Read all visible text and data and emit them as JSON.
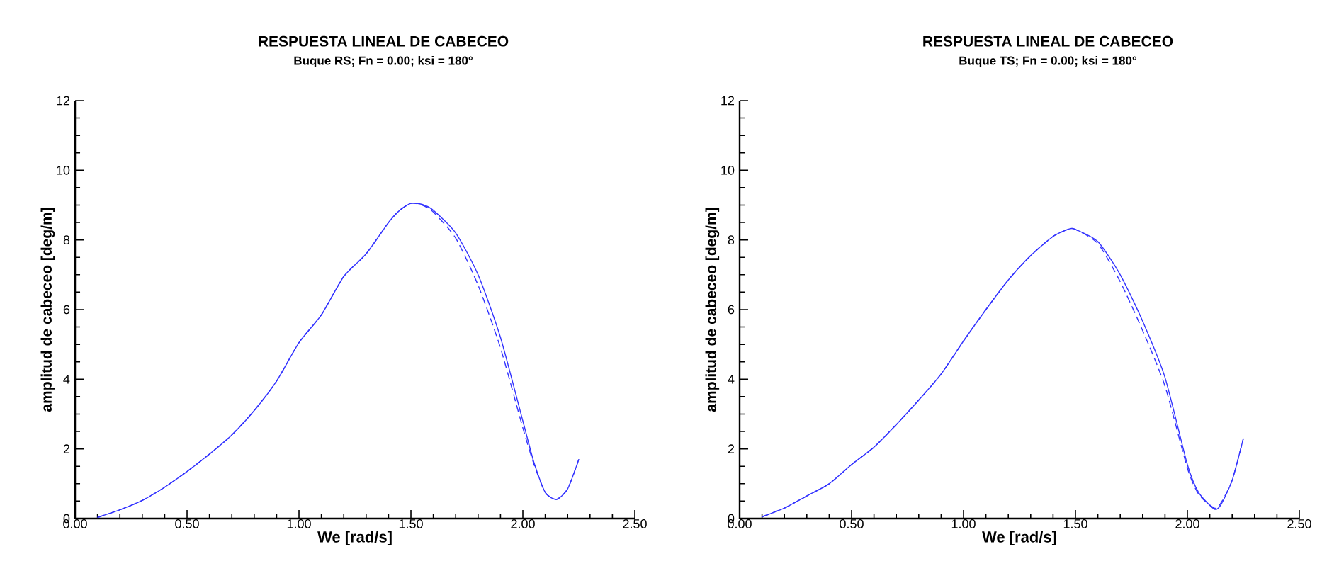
{
  "chart_data": [
    {
      "type": "line",
      "title": "RESPUESTA LINEAL DE CABECEO",
      "subtitle": "Buque RS; Fn = 0.00; ksi = 180°",
      "xlabel": "We [rad/s]",
      "ylabel": "amplitud de cabeceo [deg/m]",
      "xlim": [
        0,
        2.5
      ],
      "ylim": [
        0,
        12
      ],
      "xticks": [
        {
          "value": 0,
          "label": "0.00"
        },
        {
          "value": 0.5,
          "label": "0.50"
        },
        {
          "value": 1,
          "label": "1.00"
        },
        {
          "value": 1.5,
          "label": "1.50"
        },
        {
          "value": 2,
          "label": "2.00"
        },
        {
          "value": 2.5,
          "label": "2.50"
        }
      ],
      "yticks": [
        0,
        2,
        4,
        6,
        8,
        10,
        12
      ],
      "series": [
        {
          "color": "#3333ff",
          "line_style": "dashed",
          "x": [
            0.1,
            0.2,
            0.3,
            0.4,
            0.5,
            0.6,
            0.7,
            0.8,
            0.9,
            1.0,
            1.1,
            1.2,
            1.3,
            1.4,
            1.45,
            1.5,
            1.55,
            1.6,
            1.7,
            1.8,
            1.9,
            2.0,
            2.05,
            2.1,
            2.15,
            2.2,
            2.25
          ],
          "values": [
            0.03,
            0.25,
            0.52,
            0.9,
            1.35,
            1.85,
            2.4,
            3.1,
            3.95,
            5.05,
            5.85,
            6.95,
            7.6,
            8.5,
            8.85,
            9.05,
            9.0,
            8.8,
            8.05,
            6.7,
            4.9,
            2.6,
            1.55,
            0.75,
            0.55,
            0.85,
            1.7
          ]
        },
        {
          "color": "#3333ff",
          "line_style": "solid",
          "x": [
            0.1,
            0.2,
            0.3,
            0.4,
            0.5,
            0.6,
            0.7,
            0.8,
            0.9,
            1.0,
            1.1,
            1.2,
            1.3,
            1.4,
            1.45,
            1.5,
            1.55,
            1.6,
            1.7,
            1.8,
            1.9,
            2.0,
            2.05,
            2.1,
            2.15,
            2.2,
            2.25
          ],
          "values": [
            0.03,
            0.25,
            0.52,
            0.9,
            1.35,
            1.85,
            2.4,
            3.1,
            3.95,
            5.05,
            5.85,
            6.95,
            7.6,
            8.5,
            8.85,
            9.05,
            9.02,
            8.85,
            8.2,
            7.0,
            5.2,
            2.8,
            1.6,
            0.75,
            0.55,
            0.85,
            1.7
          ]
        }
      ]
    },
    {
      "type": "line",
      "title": "RESPUESTA LINEAL DE CABECEO",
      "subtitle": "Buque TS; Fn = 0.00; ksi = 180°",
      "xlabel": "We [rad/s]",
      "ylabel": "amplitud de cabeceo [deg/m]",
      "xlim": [
        0,
        2.5
      ],
      "ylim": [
        0,
        12
      ],
      "xticks": [
        {
          "value": 0,
          "label": "0.00"
        },
        {
          "value": 0.5,
          "label": "0.50"
        },
        {
          "value": 1,
          "label": "1.00"
        },
        {
          "value": 1.5,
          "label": "1.50"
        },
        {
          "value": 2,
          "label": "2.00"
        },
        {
          "value": 2.5,
          "label": "2.50"
        }
      ],
      "yticks": [
        0,
        2,
        4,
        6,
        8,
        10,
        12
      ],
      "series": [
        {
          "color": "#3333ff",
          "line_style": "dashed",
          "x": [
            0.1,
            0.2,
            0.3,
            0.4,
            0.5,
            0.6,
            0.7,
            0.8,
            0.9,
            1.0,
            1.1,
            1.2,
            1.3,
            1.4,
            1.47,
            1.5,
            1.6,
            1.7,
            1.8,
            1.9,
            2.0,
            2.05,
            2.12,
            2.15,
            2.2,
            2.25
          ],
          "values": [
            0.05,
            0.3,
            0.65,
            1.0,
            1.55,
            2.05,
            2.7,
            3.4,
            4.15,
            5.1,
            6.0,
            6.85,
            7.55,
            8.1,
            8.31,
            8.3,
            7.9,
            6.8,
            5.4,
            3.8,
            1.45,
            0.7,
            0.3,
            0.45,
            1.1,
            2.3
          ]
        },
        {
          "color": "#3333ff",
          "line_style": "solid",
          "x": [
            0.1,
            0.2,
            0.3,
            0.4,
            0.5,
            0.6,
            0.7,
            0.8,
            0.9,
            1.0,
            1.1,
            1.2,
            1.3,
            1.4,
            1.47,
            1.5,
            1.6,
            1.7,
            1.8,
            1.9,
            2.0,
            2.05,
            2.12,
            2.15,
            2.2,
            2.25
          ],
          "values": [
            0.05,
            0.3,
            0.65,
            1.0,
            1.55,
            2.05,
            2.7,
            3.4,
            4.15,
            5.1,
            6.0,
            6.85,
            7.55,
            8.1,
            8.31,
            8.3,
            7.95,
            7.0,
            5.67,
            4.05,
            1.55,
            0.75,
            0.27,
            0.4,
            1.1,
            2.3
          ]
        }
      ]
    }
  ]
}
